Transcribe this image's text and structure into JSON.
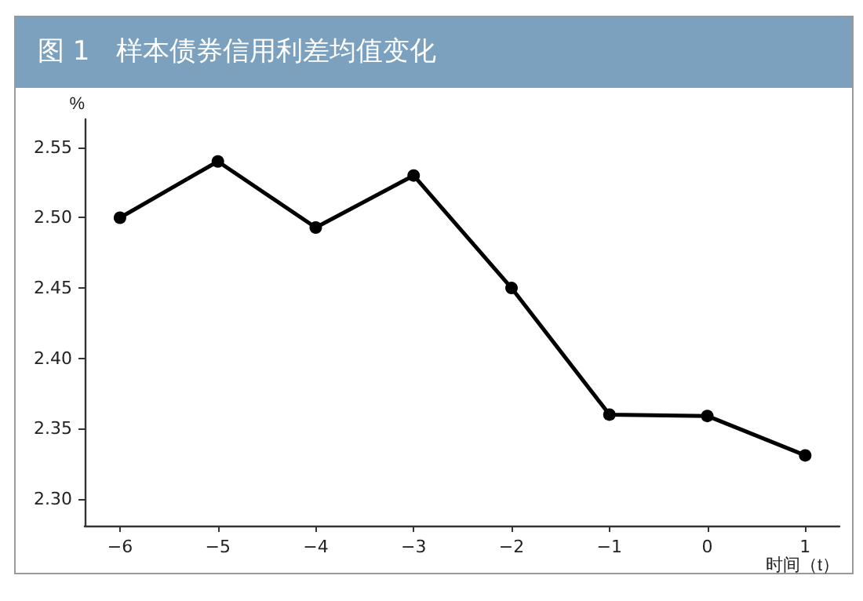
{
  "chart_data": {
    "type": "line",
    "title": "图 1　样本债券信用利差均值变化",
    "ylabel": "%",
    "xlabel": "时间（t）",
    "x": [
      -6,
      -5,
      -4,
      -3,
      -2,
      -1,
      0,
      1
    ],
    "series": [
      {
        "color": "#000000",
        "values": [
          2.5,
          2.54,
          2.493,
          2.53,
          2.45,
          2.36,
          2.359,
          2.331
        ]
      }
    ],
    "xlim": [
      -6.36,
      1.35
    ],
    "xticks": [
      {
        "value": -6,
        "label": "−6"
      },
      {
        "value": -5,
        "label": "−5"
      },
      {
        "value": -4,
        "label": "−4"
      },
      {
        "value": -3,
        "label": "−3"
      },
      {
        "value": -2,
        "label": "−2"
      },
      {
        "value": -1,
        "label": "−1"
      },
      0,
      1
    ],
    "ylim": [
      2.281,
      2.57
    ],
    "yticks": [
      {
        "value": 2.3,
        "label": "2.30"
      },
      {
        "value": 2.35,
        "label": "2.35"
      },
      {
        "value": 2.4,
        "label": "2.40"
      },
      {
        "value": 2.45,
        "label": "2.45"
      },
      {
        "value": 2.5,
        "label": "2.50"
      },
      {
        "value": 2.55,
        "label": "2.55"
      }
    ],
    "grid": false,
    "marker": "circle",
    "line_style": "solid"
  }
}
